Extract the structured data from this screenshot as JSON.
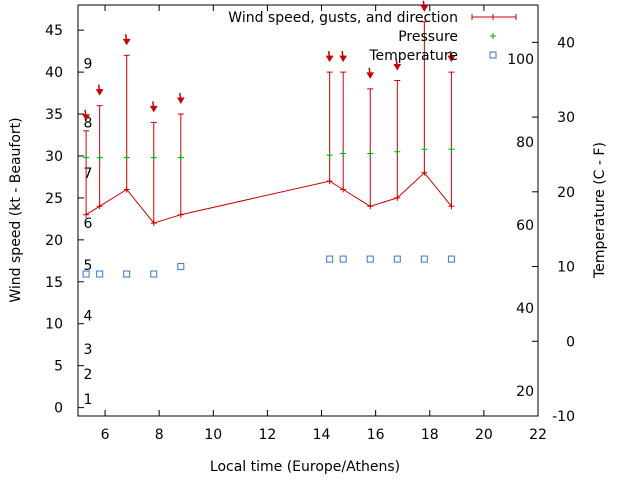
{
  "chart_data": {
    "type": "line",
    "xlabel": "Local time (Europe/Athens)",
    "ylabel": "Wind speed (kt - Beaufort)",
    "y2label": "Temperature (C - F)",
    "xlim": [
      5,
      22
    ],
    "xticks": [
      6,
      8,
      10,
      12,
      14,
      16,
      18,
      20,
      22
    ],
    "ylim": [
      -1,
      48
    ],
    "yticks": [
      0,
      5,
      10,
      15,
      20,
      25,
      30,
      35,
      40,
      45
    ],
    "y2lim": [
      -10,
      45
    ],
    "y2ticks_celsius": [
      -10,
      0,
      10,
      20,
      30,
      40
    ],
    "y2ticks_fahrenheit": [
      20,
      40,
      60,
      80,
      100
    ],
    "beaufort_labels": [
      {
        "value": 1,
        "at_knots": 1
      },
      {
        "value": 2,
        "at_knots": 4
      },
      {
        "value": 3,
        "at_knots": 7
      },
      {
        "value": 4,
        "at_knots": 11
      },
      {
        "value": 5,
        "at_knots": 17
      },
      {
        "value": 6,
        "at_knots": 22
      },
      {
        "value": 7,
        "at_knots": 28
      },
      {
        "value": 8,
        "at_knots": 34
      },
      {
        "value": 9,
        "at_knots": 41
      }
    ],
    "legend_position": "top-right",
    "series": [
      {
        "name": "Wind speed, gusts, and direction",
        "color": "#cc0000",
        "x": [
          5.3,
          5.8,
          6.8,
          7.8,
          8.8,
          14.3,
          14.8,
          15.8,
          16.8,
          17.8,
          18.8
        ],
        "values": [
          23,
          24,
          26,
          22,
          23,
          27,
          26,
          24,
          25,
          28,
          24
        ],
        "gusts": [
          33,
          36,
          42,
          34,
          35,
          40,
          40,
          38,
          39,
          46,
          40
        ]
      },
      {
        "name": "Pressure",
        "color": "#00aa00",
        "x": [
          5.3,
          5.8,
          6.8,
          7.8,
          8.8,
          14.3,
          14.8,
          15.8,
          16.8,
          17.8,
          18.8
        ],
        "values": [
          29.8,
          29.8,
          29.8,
          29.8,
          29.8,
          30.1,
          30.3,
          30.3,
          30.5,
          30.8,
          30.8
        ]
      },
      {
        "name": "Temperature",
        "color": "#3377cc",
        "axis": "y2",
        "x": [
          5.3,
          5.8,
          6.8,
          7.8,
          8.8,
          14.3,
          14.8,
          15.8,
          16.8,
          17.8,
          18.8
        ],
        "values": [
          9,
          9,
          9,
          9,
          10,
          11,
          11,
          11,
          11,
          11,
          11
        ]
      }
    ]
  }
}
